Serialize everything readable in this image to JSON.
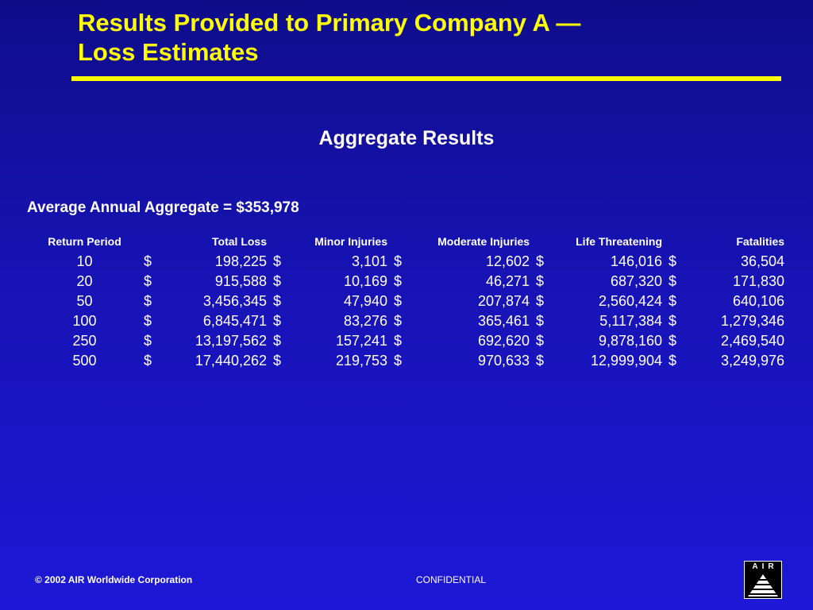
{
  "slide": {
    "title_line1": "Results Provided to Primary Company A —",
    "title_line2": "Loss Estimates",
    "section_title": "Aggregate Results",
    "aggregate_label": "Average Annual Aggregate = $353,978"
  },
  "table": {
    "currency_symbol": "$",
    "columns": [
      "Return Period",
      "Total Loss",
      "Minor Injuries",
      "Moderate Injuries",
      "Life Threatening",
      "Fatalities"
    ],
    "rows": [
      {
        "period": "10",
        "total": "198,225",
        "minor": "3,101",
        "moderate": "12,602",
        "life": "146,016",
        "fatal": "36,504"
      },
      {
        "period": "20",
        "total": "915,588",
        "minor": "10,169",
        "moderate": "46,271",
        "life": "687,320",
        "fatal": "171,830"
      },
      {
        "period": "50",
        "total": "3,456,345",
        "minor": "47,940",
        "moderate": "207,874",
        "life": "2,560,424",
        "fatal": "640,106"
      },
      {
        "period": "100",
        "total": "6,845,471",
        "minor": "83,276",
        "moderate": "365,461",
        "life": "5,117,384",
        "fatal": "1,279,346"
      },
      {
        "period": "250",
        "total": "13,197,562",
        "minor": "157,241",
        "moderate": "692,620",
        "life": "9,878,160",
        "fatal": "2,469,540"
      },
      {
        "period": "500",
        "total": "17,440,262",
        "minor": "219,753",
        "moderate": "970,633",
        "life": "12,999,904",
        "fatal": "3,249,976"
      }
    ]
  },
  "footer": {
    "copyright": "© 2002 AIR Worldwide Corporation",
    "confidential": "CONFIDENTIAL",
    "logo_text": "AIR"
  },
  "colors": {
    "background": "#1713b4",
    "title": "#ffff00",
    "text": "#ffffff"
  },
  "icons": {
    "logo": "air-pyramid-logo"
  }
}
